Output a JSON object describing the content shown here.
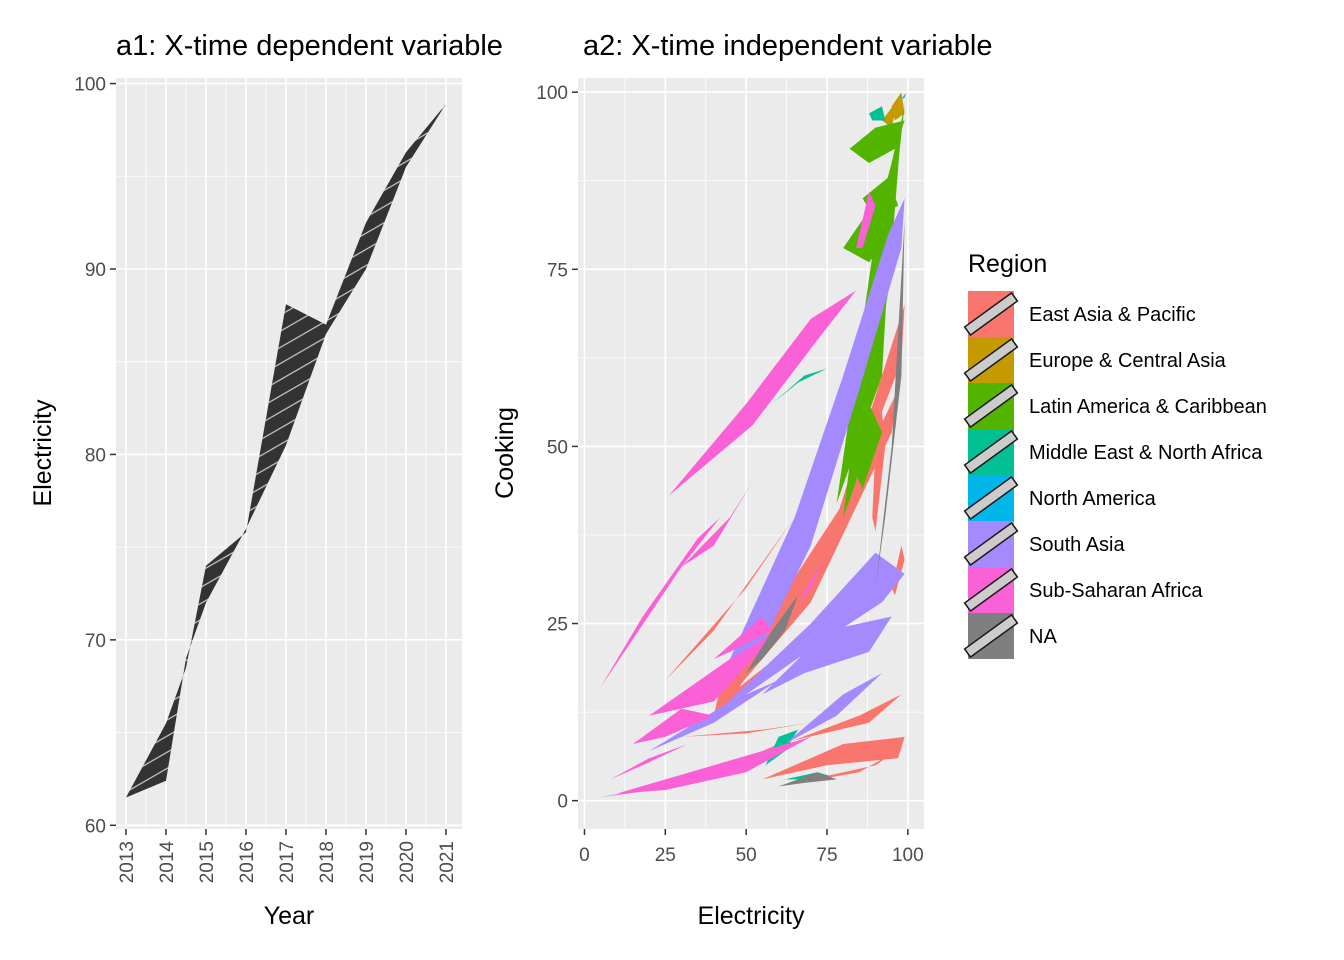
{
  "titles": {
    "a1": "a1: X-time dependent variable",
    "a2": "a2: X-time independent variable"
  },
  "colors": {
    "panel_bg": "#ebebeb",
    "grid": "#ffffff",
    "a1_fill": "#333333",
    "a1_hatch": "#ffffff",
    "hatch_legend_fill": "#cccccc"
  },
  "chart_data": [
    {
      "id": "a1",
      "type": "area",
      "title": "a1: X-time dependent variable",
      "xlabel": "Year",
      "ylabel": "Electricity",
      "x_ticks": [
        "2013",
        "2014",
        "2015",
        "2016",
        "2017",
        "2018",
        "2019",
        "2020",
        "2021"
      ],
      "y_ticks": [
        "60",
        "70",
        "80",
        "90",
        "100"
      ],
      "xlim": [
        2012.75,
        2021.4
      ],
      "ylim": [
        59.8,
        100.3
      ],
      "grid": true,
      "pattern": "stripe",
      "series": [
        {
          "points": [
            [
              2013,
              61.5
            ],
            [
              2014,
              62.4
            ],
            [
              2014.5,
              69
            ],
            [
              2015,
              72
            ],
            [
              2016,
              76
            ],
            [
              2017,
              80.5
            ],
            [
              2018,
              86.5
            ],
            [
              2019,
              90
            ],
            [
              2020,
              95.5
            ],
            [
              2021,
              98.9
            ],
            [
              2020,
              96.3
            ],
            [
              2019,
              92.5
            ],
            [
              2018,
              87
            ],
            [
              2017,
              88.1
            ],
            [
              2016,
              75.8
            ],
            [
              2015,
              74
            ],
            [
              2014.5,
              68.5
            ],
            [
              2014,
              65.5
            ],
            [
              2013,
              61.5
            ]
          ]
        }
      ]
    },
    {
      "id": "a2",
      "type": "area",
      "title": "a2: X-time independent variable",
      "xlabel": "Electricity",
      "ylabel": "Cooking",
      "x_ticks": [
        "0",
        "25",
        "50",
        "75",
        "100"
      ],
      "y_ticks": [
        "0",
        "25",
        "50",
        "75",
        "100"
      ],
      "xlim": [
        -2,
        105
      ],
      "ylim": [
        -4,
        102
      ],
      "grid": true,
      "pattern": "stripe",
      "legend": {
        "title": "Region",
        "position": "right"
      },
      "series": [
        {
          "name": "East Asia & Pacific",
          "color": "#f8766d",
          "polygons": [
            [
              [
                40,
                12
              ],
              [
                70,
                28
              ],
              [
                95,
                52
              ],
              [
                97,
                58
              ],
              [
                80,
                42
              ],
              [
                60,
                28
              ],
              [
                42,
                16
              ]
            ],
            [
              [
                45,
                14
              ],
              [
                75,
                35
              ],
              [
                98,
                62
              ],
              [
                99,
                70
              ],
              [
                78,
                40
              ],
              [
                50,
                20
              ]
            ],
            [
              [
                35,
                10
              ],
              [
                60,
                20
              ],
              [
                82,
                26
              ],
              [
                90,
                30
              ],
              [
                70,
                24
              ],
              [
                45,
                15
              ]
            ],
            [
              [
                55,
                3
              ],
              [
                80,
                8
              ],
              [
                99,
                9
              ],
              [
                97,
                6
              ],
              [
                75,
                5
              ]
            ],
            [
              [
                50,
                6
              ],
              [
                85,
                12
              ],
              [
                98,
                15
              ],
              [
                88,
                11
              ],
              [
                60,
                8
              ]
            ],
            [
              [
                30,
                9
              ],
              [
                55,
                10
              ],
              [
                70,
                11
              ],
              [
                50,
                9.5
              ]
            ],
            [
              [
                60,
                2
              ],
              [
                90,
                5
              ],
              [
                100,
                8
              ],
              [
                85,
                4
              ]
            ],
            [
              [
                95,
                30
              ],
              [
                98,
                36
              ],
              [
                99,
                34
              ],
              [
                96,
                29
              ]
            ],
            [
              [
                89,
                40
              ],
              [
                91,
                60
              ],
              [
                93,
                50
              ],
              [
                90,
                38
              ]
            ],
            [
              [
                25,
                17
              ],
              [
                50,
                30
              ],
              [
                65,
                40
              ],
              [
                40,
                24
              ]
            ]
          ]
        },
        {
          "name": "Europe & Central Asia",
          "color": "#c49a00",
          "polygons": [
            [
              [
                95,
                98
              ],
              [
                98,
                100
              ],
              [
                99,
                97
              ],
              [
                96,
                96
              ]
            ],
            [
              [
                92,
                96
              ],
              [
                97,
                99
              ],
              [
                95,
                95
              ]
            ]
          ]
        },
        {
          "name": "Latin America & Caribbean",
          "color": "#53b400",
          "polygons": [
            [
              [
                80,
                40
              ],
              [
                88,
                70
              ],
              [
                95,
                90
              ],
              [
                99,
                98
              ],
              [
                96,
                86
              ],
              [
                90,
                65
              ],
              [
                84,
                45
              ]
            ],
            [
              [
                82,
                45
              ],
              [
                92,
                85
              ],
              [
                98,
                95
              ],
              [
                94,
                72
              ],
              [
                86,
                50
              ]
            ],
            [
              [
                78,
                42
              ],
              [
                90,
                80
              ],
              [
                96,
                92
              ],
              [
                92,
                60
              ]
            ],
            [
              [
                82,
                92
              ],
              [
                90,
                95
              ],
              [
                99,
                96
              ],
              [
                96,
                92
              ],
              [
                88,
                90
              ]
            ],
            [
              [
                86,
                85
              ],
              [
                94,
                88
              ],
              [
                97,
                84
              ],
              [
                90,
                82
              ]
            ],
            [
              [
                80,
                78
              ],
              [
                92,
                86
              ],
              [
                95,
                80
              ],
              [
                88,
                76
              ]
            ],
            [
              [
                82,
                48
              ],
              [
                88,
                56
              ],
              [
                92,
                52
              ],
              [
                86,
                44
              ]
            ]
          ]
        },
        {
          "name": "Middle East & North Africa",
          "color": "#00c094",
          "polygons": [
            [
              [
                56,
                5
              ],
              [
                60,
                9
              ],
              [
                66,
                10
              ],
              [
                62,
                7
              ]
            ],
            [
              [
                58,
                56
              ],
              [
                68,
                60
              ],
              [
                75,
                61
              ],
              [
                66,
                59
              ]
            ],
            [
              [
                88,
                97
              ],
              [
                92,
                98
              ],
              [
                93,
                96
              ],
              [
                89,
                96
              ]
            ],
            [
              [
                62,
                3
              ],
              [
                72,
                4
              ],
              [
                76,
                3.5
              ],
              [
                68,
                3
              ]
            ]
          ]
        },
        {
          "name": "North America",
          "color": "#00b6eb",
          "polygons": [
            [
              [
                98,
                99
              ],
              [
                99.5,
                100
              ],
              [
                99,
                99.2
              ]
            ]
          ]
        },
        {
          "name": "South Asia",
          "color": "#a58aff",
          "polygons": [
            [
              [
                45,
                20
              ],
              [
                65,
                40
              ],
              [
                80,
                60
              ],
              [
                94,
                80
              ],
              [
                99,
                85
              ],
              [
                98,
                78
              ],
              [
                85,
                58
              ],
              [
                70,
                36
              ],
              [
                55,
                22
              ]
            ],
            [
              [
                40,
                12
              ],
              [
                70,
                25
              ],
              [
                90,
                35
              ],
              [
                99,
                32
              ],
              [
                92,
                28
              ],
              [
                72,
                22
              ],
              [
                50,
                15
              ]
            ],
            [
              [
                55,
                15
              ],
              [
                75,
                24
              ],
              [
                95,
                26
              ],
              [
                88,
                21
              ],
              [
                68,
                18
              ]
            ],
            [
              [
                20,
                7
              ],
              [
                45,
                14
              ],
              [
                60,
                17
              ],
              [
                40,
                11
              ]
            ],
            [
              [
                62,
                8
              ],
              [
                80,
                15
              ],
              [
                92,
                18
              ],
              [
                78,
                12
              ]
            ]
          ]
        },
        {
          "name": "Sub-Saharan Africa",
          "color": "#fb61d7",
          "polygons": [
            [
              [
                5,
                16
              ],
              [
                30,
                33
              ],
              [
                42,
                40
              ],
              [
                35,
                37
              ],
              [
                18,
                26
              ]
            ],
            [
              [
                26,
                43
              ],
              [
                50,
                56
              ],
              [
                70,
                68
              ],
              [
                84,
                72
              ],
              [
                72,
                65
              ],
              [
                52,
                53
              ]
            ],
            [
              [
                10,
                1
              ],
              [
                40,
                5
              ],
              [
                70,
                9
              ],
              [
                50,
                4
              ],
              [
                25,
                1.5
              ]
            ],
            [
              [
                5,
                0.5
              ],
              [
                35,
                3
              ],
              [
                55,
                7
              ],
              [
                30,
                2
              ]
            ],
            [
              [
                20,
                12
              ],
              [
                45,
                20
              ],
              [
                60,
                24
              ],
              [
                40,
                14
              ]
            ],
            [
              [
                30,
                33
              ],
              [
                45,
                40
              ],
              [
                52,
                45
              ],
              [
                40,
                36
              ]
            ],
            [
              [
                15,
                8
              ],
              [
                30,
                13
              ],
              [
                40,
                12
              ],
              [
                25,
                9
              ]
            ],
            [
              [
                60,
                25
              ],
              [
                70,
                30
              ],
              [
                74,
                34
              ],
              [
                66,
                28
              ]
            ],
            [
              [
                84,
                78
              ],
              [
                88,
                86
              ],
              [
                90,
                84
              ],
              [
                86,
                78
              ]
            ],
            [
              [
                40,
                20
              ],
              [
                55,
                26
              ],
              [
                58,
                24
              ],
              [
                45,
                21
              ]
            ],
            [
              [
                8,
                3
              ],
              [
                20,
                6
              ],
              [
                32,
                8
              ],
              [
                18,
                5
              ]
            ]
          ]
        },
        {
          "name": "NA",
          "color": "#7f7f7f",
          "polygons": [
            [
              [
                50,
                18
              ],
              [
                58,
                24
              ],
              [
                66,
                29
              ],
              [
                62,
                24
              ],
              [
                55,
                20
              ]
            ],
            [
              [
                90,
                30
              ],
              [
                95,
                50
              ],
              [
                99,
                82
              ],
              [
                98,
                60
              ],
              [
                93,
                40
              ]
            ],
            [
              [
                60,
                2
              ],
              [
                72,
                4
              ],
              [
                78,
                3
              ],
              [
                68,
                2.5
              ]
            ]
          ]
        }
      ]
    }
  ]
}
